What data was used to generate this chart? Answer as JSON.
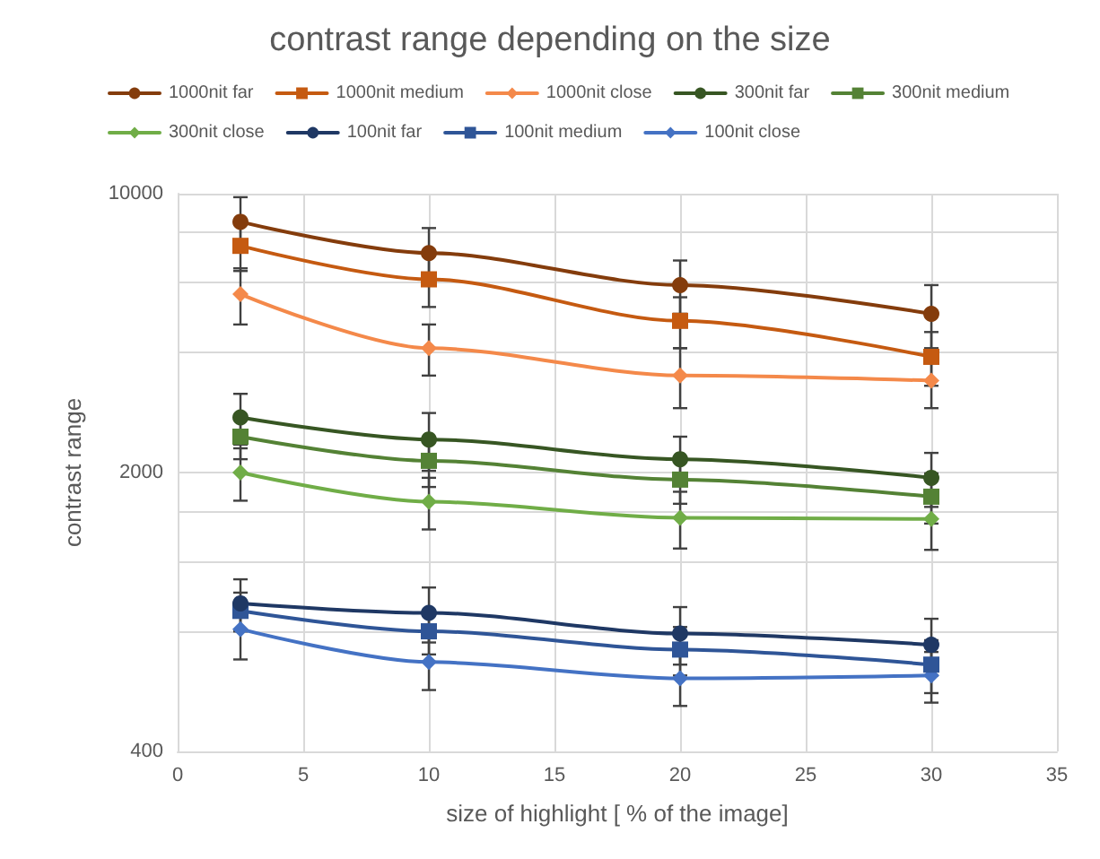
{
  "chart_data": {
    "type": "line",
    "title": "contrast range depending on the size",
    "xlabel": "size of highlight [ % of the image]",
    "ylabel": "contrast range",
    "x": [
      2.5,
      10,
      20,
      30
    ],
    "series": [
      {
        "name": "1000nit far",
        "color": "#843c0c",
        "marker": "circle",
        "values": [
          8500,
          7100,
          5900,
          5000
        ],
        "errors": [
          1300,
          1100,
          900,
          900
        ]
      },
      {
        "name": "1000nit medium",
        "color": "#c55a11",
        "marker": "square",
        "values": [
          7400,
          6100,
          4800,
          3900
        ],
        "errors": [
          1000,
          900,
          700,
          600
        ]
      },
      {
        "name": "1000nit close",
        "color": "#f4894a",
        "marker": "diamond",
        "values": [
          5600,
          4100,
          3500,
          3400
        ],
        "errors": [
          900,
          600,
          600,
          500
        ]
      },
      {
        "name": "300nit far",
        "color": "#375623",
        "marker": "circle",
        "values": [
          2750,
          2420,
          2160,
          1940
        ],
        "errors": [
          400,
          400,
          300,
          300
        ]
      },
      {
        "name": "300nit medium",
        "color": "#548235",
        "marker": "square",
        "values": [
          2460,
          2140,
          1920,
          1740
        ],
        "errors": [
          300,
          300,
          250,
          250
        ]
      },
      {
        "name": "300nit close",
        "color": "#70ad47",
        "marker": "diamond",
        "values": [
          2000,
          1690,
          1540,
          1530
        ],
        "errors": [
          300,
          250,
          250,
          250
        ]
      },
      {
        "name": "100nit far",
        "color": "#1f3864",
        "marker": "circle",
        "values": [
          940,
          890,
          790,
          740
        ],
        "errors": [
          140,
          140,
          130,
          120
        ]
      },
      {
        "name": "100nit medium",
        "color": "#2f5597",
        "marker": "square",
        "values": [
          900,
          800,
          720,
          660
        ],
        "errors": [
          100,
          100,
          100,
          100
        ]
      },
      {
        "name": "100nit close",
        "color": "#4472c4",
        "marker": "diamond",
        "values": [
          810,
          670,
          610,
          620
        ],
        "errors": [
          130,
          100,
          90,
          90
        ]
      }
    ],
    "xlim": [
      0,
      35
    ],
    "xticks": [
      0,
      5,
      10,
      15,
      20,
      25,
      30,
      35
    ],
    "log": true,
    "ylim": [
      400,
      10000
    ],
    "yticks": [
      400,
      {
        "value": 800,
        "label": null
      },
      {
        "value": 1200,
        "label": null
      },
      {
        "value": 1600,
        "label": null
      },
      2000,
      {
        "value": 4000,
        "label": null
      },
      {
        "value": 6000,
        "label": null
      },
      {
        "value": 8000,
        "label": null
      },
      10000
    ],
    "grid": true,
    "legend": "top",
    "line_style": "solid"
  }
}
